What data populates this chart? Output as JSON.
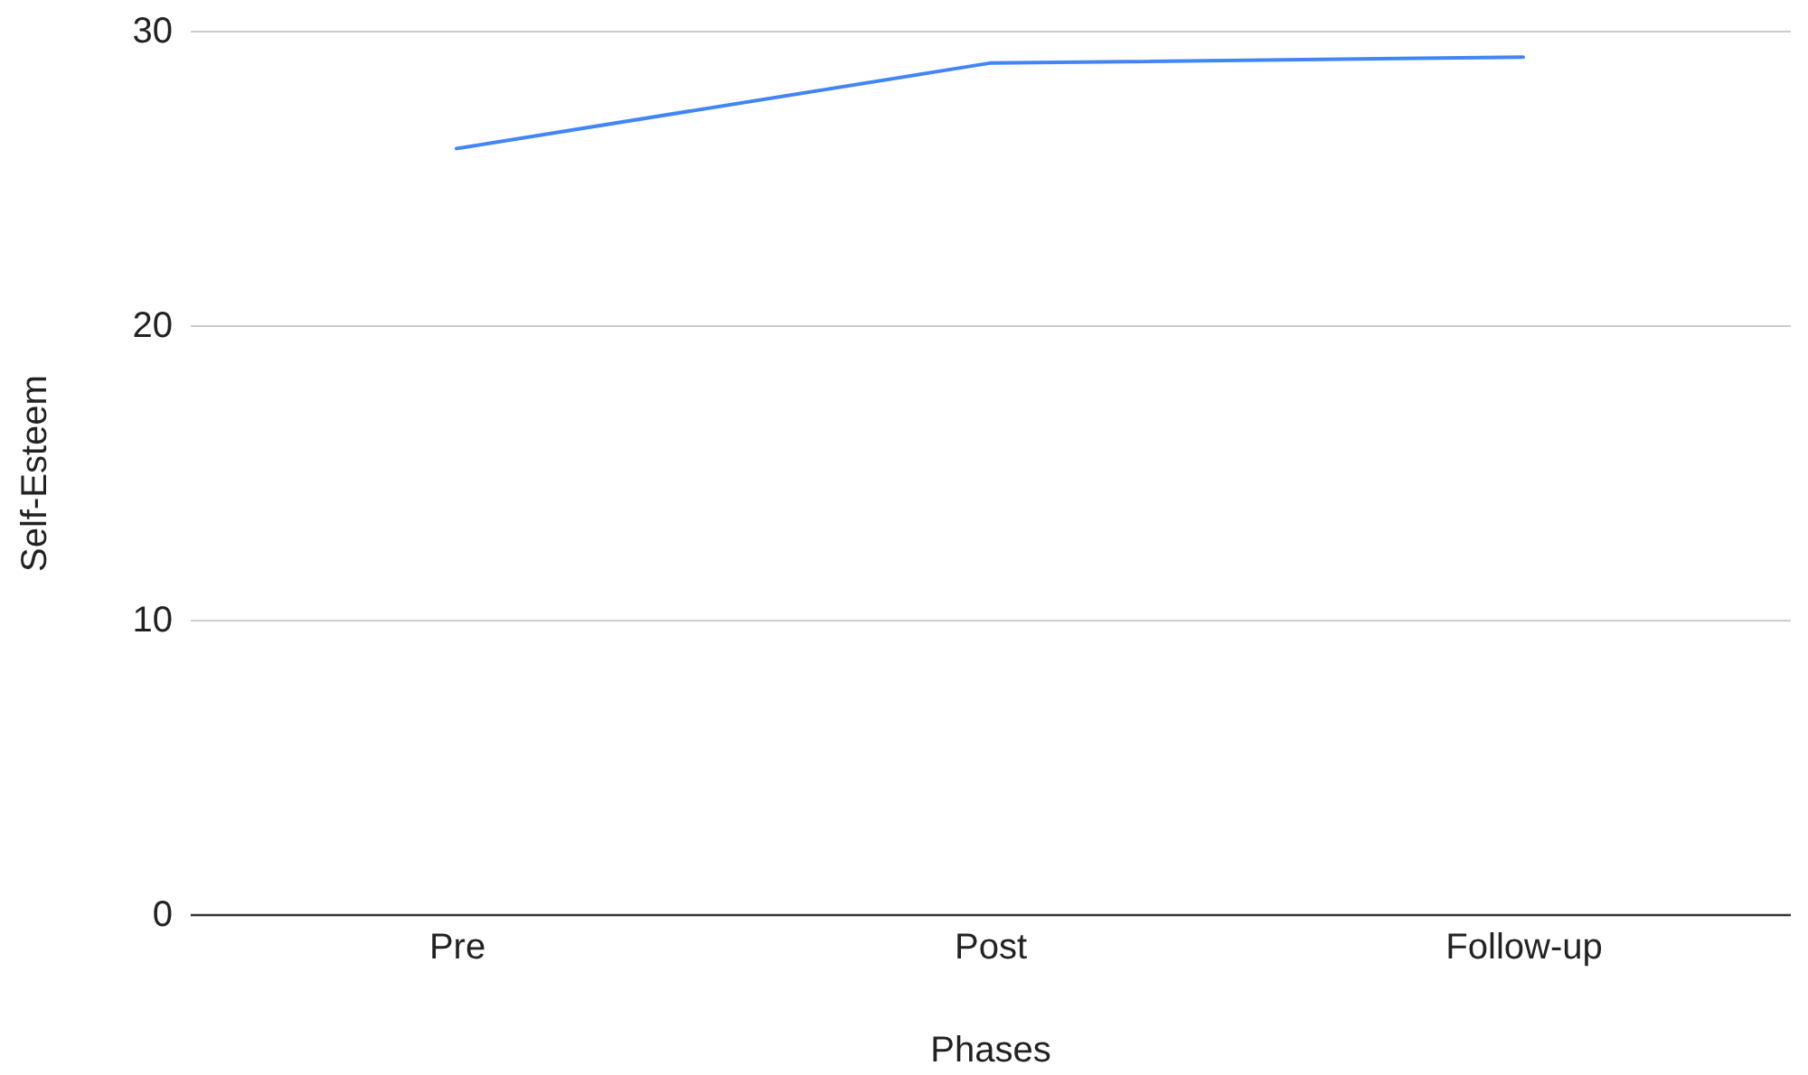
{
  "chart_data": {
    "type": "line",
    "categories": [
      "Pre",
      "Post",
      "Follow-up"
    ],
    "series": [
      {
        "color": "#4285f4",
        "values": [
          26.0,
          28.9,
          29.1
        ]
      }
    ],
    "xlabel": "Phases",
    "ylabel": "Self-Esteem",
    "ylim": [
      0,
      30
    ],
    "yticks": [
      0,
      10,
      20,
      30
    ],
    "grid": "y",
    "line_style": "solid"
  }
}
